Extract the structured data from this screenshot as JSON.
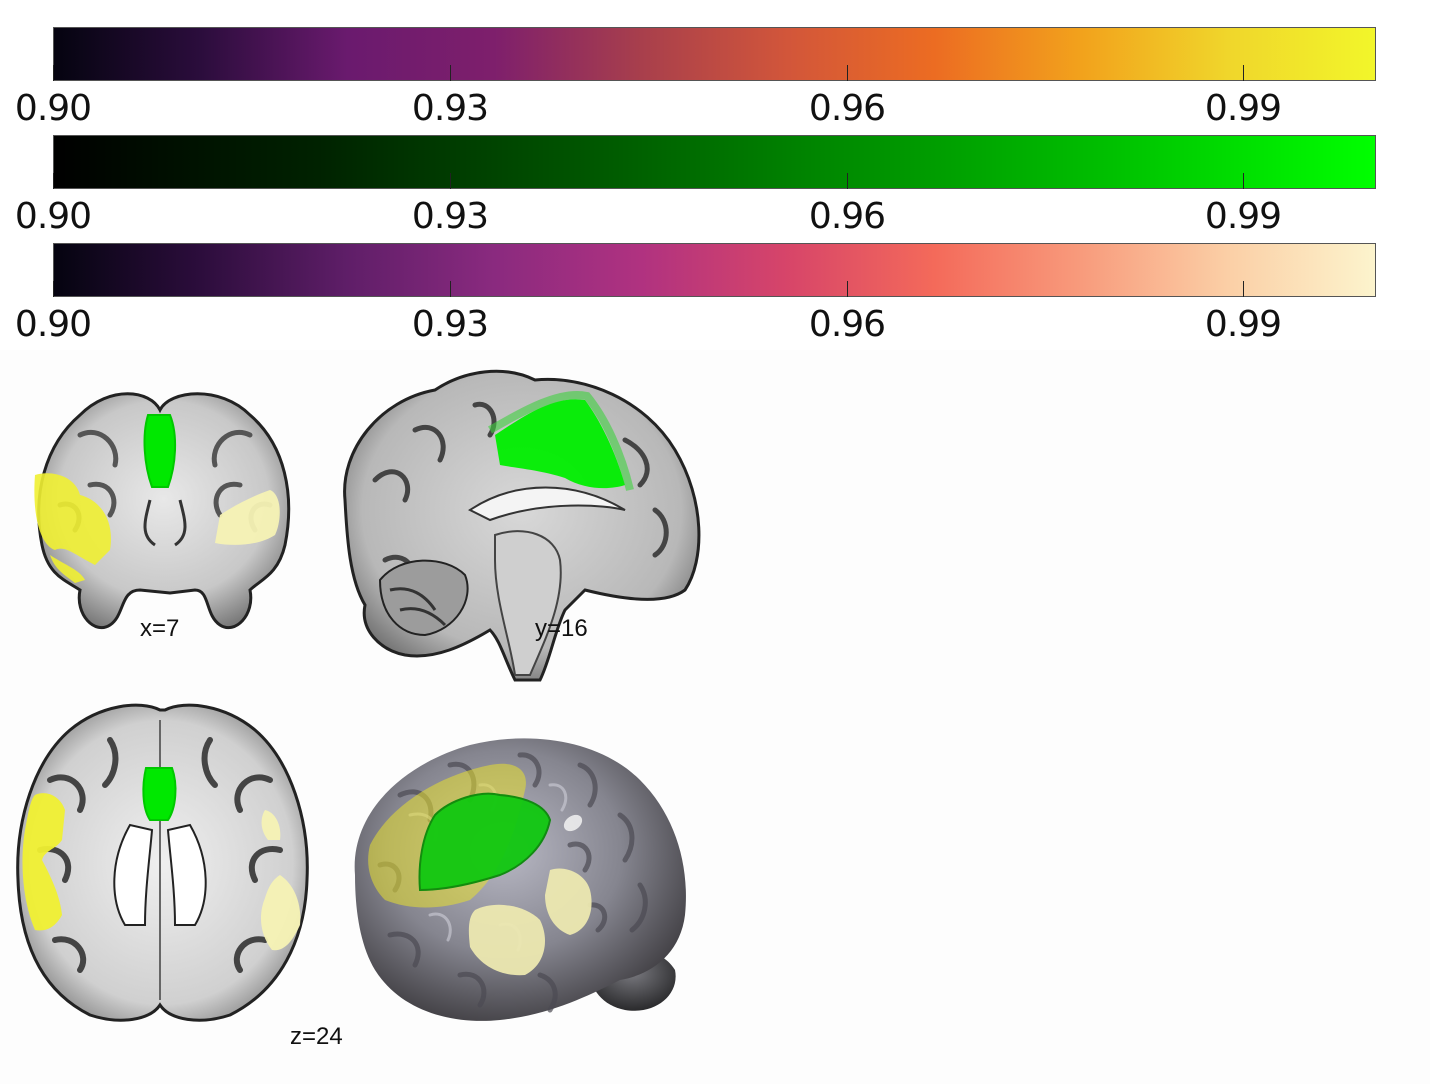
{
  "colorbars": [
    {
      "name": "inferno",
      "gradient": [
        "#050410",
        "#2b0d3c",
        "#6a1a6e",
        "#7e1f6c",
        "#a83f4c",
        "#d2563a",
        "#ec6c22",
        "#f2a21c",
        "#f0d62b",
        "#f2f62a"
      ],
      "ticks": [
        "0.90",
        "0.93",
        "0.96",
        "0.99"
      ]
    },
    {
      "name": "green",
      "gradient": [
        "#000000",
        "#002200",
        "#005500",
        "#008c00",
        "#00c000",
        "#00ff00"
      ],
      "ticks": [
        "0.90",
        "0.93",
        "0.96",
        "0.99"
      ]
    },
    {
      "name": "magma",
      "gradient": [
        "#050410",
        "#2c0d3c",
        "#5f1e68",
        "#8a2a7f",
        "#b03280",
        "#d74569",
        "#f46a5a",
        "#f89b7c",
        "#fbcfa6",
        "#fcf4cd"
      ],
      "ticks": [
        "0.90",
        "0.93",
        "0.96",
        "0.99"
      ]
    }
  ],
  "slices": {
    "coronal": {
      "label": "x=7"
    },
    "sagittal": {
      "label": "y=16"
    },
    "axial": {
      "label": "z=24"
    }
  },
  "overlay_colors": {
    "green": "#00e800",
    "yellow": "#f0f032",
    "pale": "#f6f2b4"
  }
}
